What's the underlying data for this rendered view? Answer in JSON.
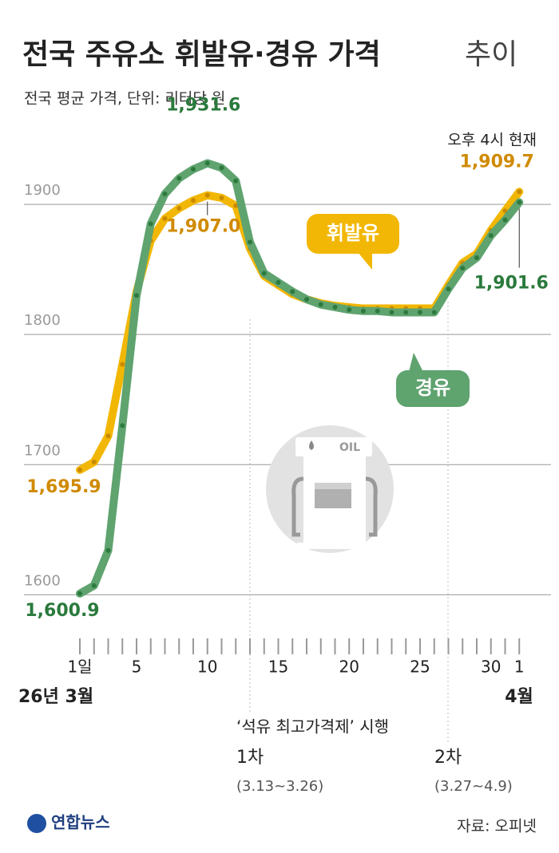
{
  "title": "전국 주유소 휘발유·경유 가격",
  "title_suffix": "추이",
  "subtitle": "전국 평균 가격, 단위: 리터당 원",
  "time_note": "오후 4시 현재",
  "oil_icon_label": "OIL",
  "policy": {
    "title": "‘석유 최고가격제’ 시행",
    "phase1": "1차",
    "phase1_period": "(3.13~3.26)",
    "phase2": "2차",
    "phase2_period": "(3.27~4.9)"
  },
  "source": "자료: 오피넷",
  "logo": "연합뉴스",
  "chart_data": {
    "type": "line",
    "categories": [
      "1일",
      null,
      null,
      null,
      "5",
      null,
      null,
      null,
      null,
      "10",
      null,
      null,
      null,
      null,
      "15",
      null,
      null,
      null,
      null,
      "20",
      null,
      null,
      null,
      null,
      "25",
      null,
      null,
      null,
      null,
      "30",
      null,
      "1"
    ],
    "x_group_labels": [
      "26년 3월",
      "4월"
    ],
    "series": [
      {
        "name": "휘발유",
        "color": "#f2b705",
        "dot_color": "#c98a00",
        "label_color": "#d08a00",
        "values": [
          1695.9,
          1702,
          1722,
          1777,
          1833,
          1872,
          1889,
          1897,
          1903,
          1907.0,
          1905,
          1899,
          1866,
          1845,
          1838,
          1831,
          1827,
          1824,
          1822,
          1821,
          1820,
          1820,
          1820,
          1820,
          1820,
          1820,
          1838,
          1855,
          1862,
          1880,
          1895,
          1909.7
        ],
        "value_labels": [
          "1,695.9",
          null,
          null,
          null,
          null,
          null,
          null,
          null,
          null,
          "1,907.0",
          null,
          null,
          null,
          null,
          null,
          null,
          null,
          null,
          null,
          null,
          null,
          null,
          null,
          null,
          null,
          null,
          null,
          null,
          null,
          null,
          null,
          "1,909.7"
        ]
      },
      {
        "name": "경유",
        "color": "#5fa36f",
        "dot_color": "#2d7a3e",
        "label_color": "#2a7a3c",
        "values": [
          1600.9,
          1607,
          1634,
          1730,
          1830,
          1885,
          1908,
          1920,
          1927,
          1931.6,
          1928,
          1918,
          1871,
          1847,
          1840,
          1833,
          1827,
          1823,
          1821,
          1819,
          1818,
          1818,
          1817,
          1817,
          1817,
          1817,
          1835,
          1851,
          1859,
          1876,
          1888,
          1901.6
        ],
        "value_labels": [
          "1,600.9",
          null,
          null,
          null,
          null,
          null,
          null,
          null,
          null,
          "1,931.6",
          null,
          null,
          null,
          null,
          null,
          null,
          null,
          null,
          null,
          null,
          null,
          null,
          null,
          null,
          null,
          null,
          null,
          null,
          null,
          null,
          null,
          "1,901.6"
        ]
      }
    ],
    "ylim": [
      1572,
      1935
    ],
    "yticks": [
      1600,
      1700,
      1800,
      1900
    ],
    "grid": true
  }
}
